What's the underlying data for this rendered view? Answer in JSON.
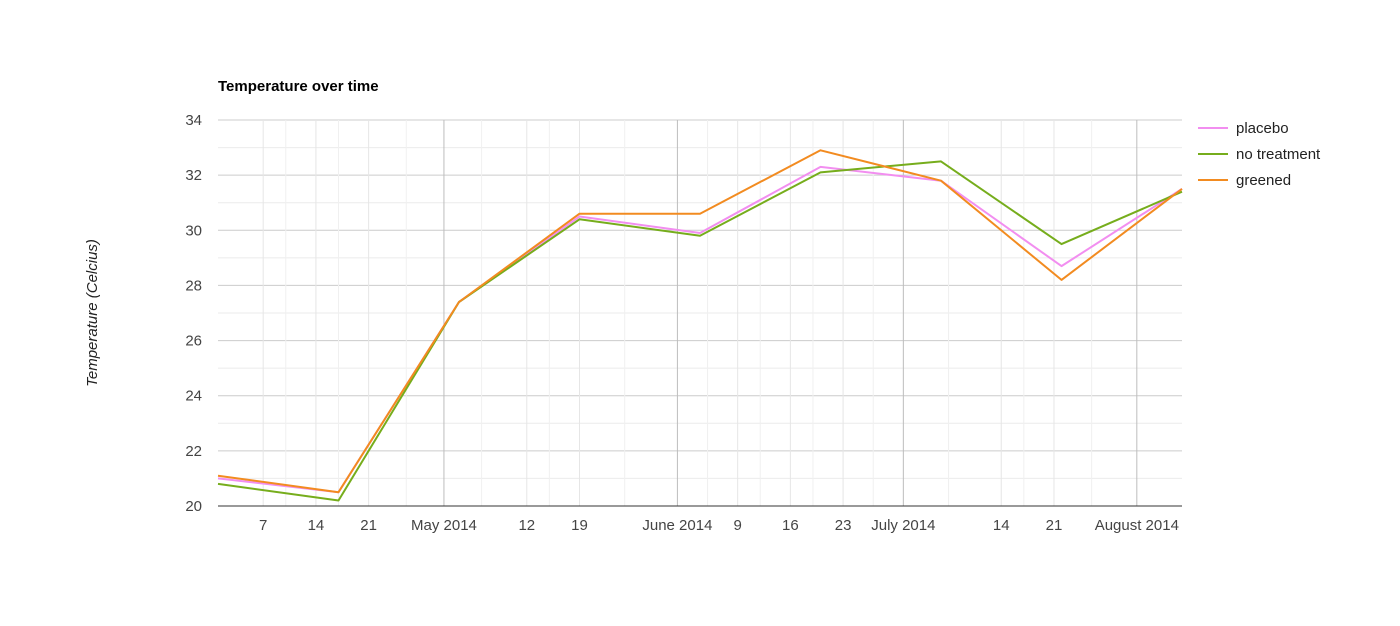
{
  "chart_data": {
    "type": "line",
    "title": "Temperature over time",
    "xlabel": "",
    "ylabel": "Temperature (Celcius)",
    "ylim": [
      20,
      34
    ],
    "yticks": [
      "20",
      "22",
      "24",
      "26",
      "28",
      "30",
      "32",
      "34"
    ],
    "xlim": [
      "2014-04-01",
      "2014-08-07"
    ],
    "xticks": [
      {
        "date": "2014-04-07",
        "label": "7",
        "major": false
      },
      {
        "date": "2014-04-14",
        "label": "14",
        "major": false
      },
      {
        "date": "2014-04-21",
        "label": "21",
        "major": false
      },
      {
        "date": "2014-05-01",
        "label": "May 2014",
        "major": true
      },
      {
        "date": "2014-05-12",
        "label": "12",
        "major": false
      },
      {
        "date": "2014-05-19",
        "label": "19",
        "major": false
      },
      {
        "date": "2014-06-01",
        "label": "June 2014",
        "major": true
      },
      {
        "date": "2014-06-09",
        "label": "9",
        "major": false
      },
      {
        "date": "2014-06-16",
        "label": "16",
        "major": false
      },
      {
        "date": "2014-06-23",
        "label": "23",
        "major": false
      },
      {
        "date": "2014-07-01",
        "label": "July 2014",
        "major": true
      },
      {
        "date": "2014-07-14",
        "label": "14",
        "major": false
      },
      {
        "date": "2014-07-21",
        "label": "21",
        "major": false
      },
      {
        "date": "2014-08-01",
        "label": "August 2014",
        "major": true
      }
    ],
    "x": [
      "2014-04-01",
      "2014-04-17",
      "2014-05-03",
      "2014-05-19",
      "2014-06-04",
      "2014-06-20",
      "2014-07-06",
      "2014-07-22",
      "2014-08-07"
    ],
    "series": [
      {
        "name": "placebo",
        "color": "#f28ef0",
        "values": [
          21.0,
          20.5,
          27.4,
          30.5,
          29.9,
          32.3,
          31.8,
          28.7,
          31.5
        ]
      },
      {
        "name": "no treatment",
        "color": "#76ad1c",
        "values": [
          20.8,
          20.2,
          27.4,
          30.4,
          29.8,
          32.1,
          32.5,
          29.5,
          31.4
        ]
      },
      {
        "name": "greened",
        "color": "#f28b20",
        "values": [
          21.1,
          20.5,
          27.4,
          30.6,
          30.6,
          32.9,
          31.8,
          28.2,
          31.5
        ]
      }
    ],
    "grid": true,
    "legend": "right"
  }
}
